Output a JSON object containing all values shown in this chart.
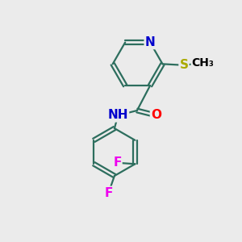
{
  "background_color": "#ebebeb",
  "atom_colors": {
    "C": "#000000",
    "N": "#0000cc",
    "O": "#ff0000",
    "S": "#aaaa00",
    "F": "#ee00ee",
    "H": "#555555"
  },
  "bond_color": "#2d6e5e",
  "bond_width": 1.6,
  "font_size": 11,
  "fig_size": [
    3.0,
    3.0
  ],
  "dpi": 100
}
